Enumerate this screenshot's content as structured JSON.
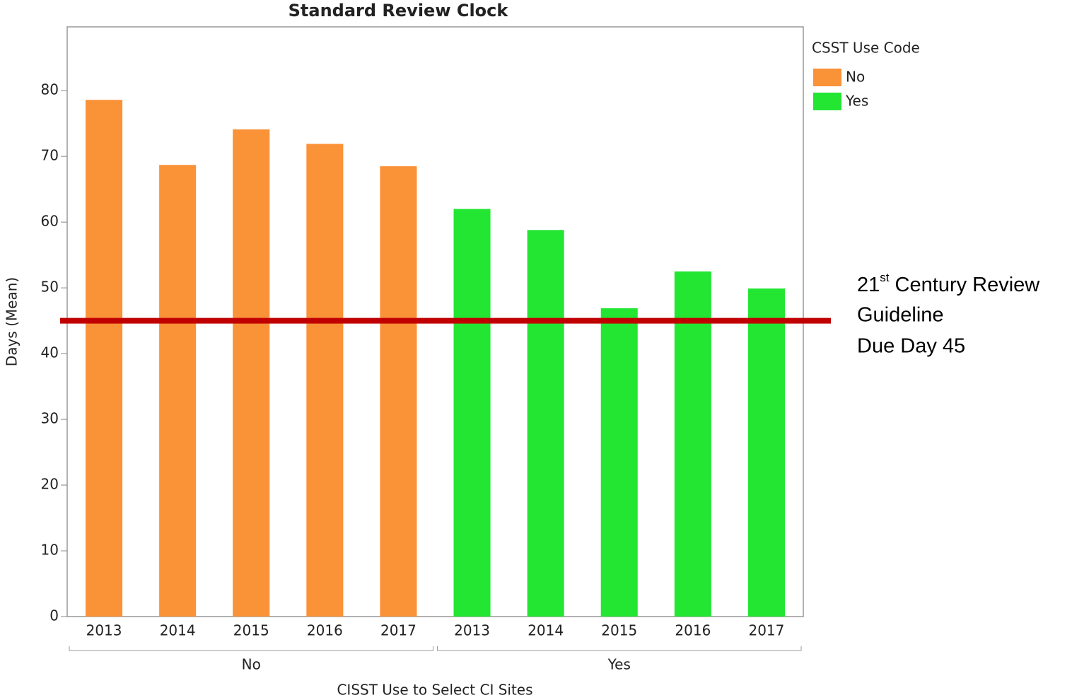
{
  "chart_data": {
    "type": "bar",
    "title": "Standard Review Clock",
    "x_label": "CISST Use to Select CI Sites",
    "y_label": "Days (Mean)",
    "legend_title": "CSST Use Code",
    "legend_position": "right",
    "groups": [
      "No",
      "Yes"
    ],
    "categories": [
      "2013",
      "2014",
      "2015",
      "2016",
      "2017"
    ],
    "series": [
      {
        "name": "No",
        "color": "#fa9238",
        "values": [
          78.6,
          68.7,
          74.1,
          71.9,
          68.5
        ]
      },
      {
        "name": "Yes",
        "color": "#22e632",
        "values": [
          62.0,
          58.8,
          46.9,
          52.5,
          49.9
        ]
      }
    ],
    "ylim": [
      0,
      89.7
    ],
    "yticks": [
      0,
      10,
      20,
      30,
      40,
      50,
      60,
      70,
      80
    ],
    "reference_line": {
      "value": 45,
      "color": "#c00000",
      "label": {
        "number": "21",
        "superscript": "st",
        "rest": " Century Review",
        "lines": [
          "Guideline",
          "Due Day 45"
        ]
      }
    }
  }
}
